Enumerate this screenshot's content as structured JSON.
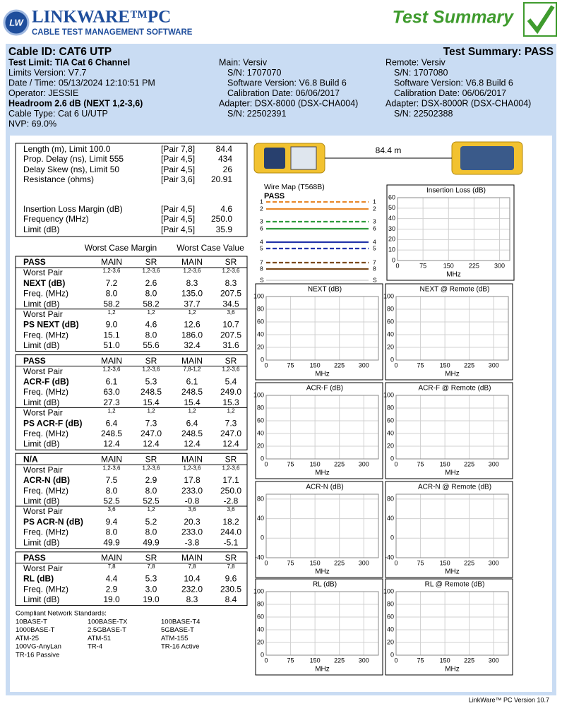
{
  "header": {
    "logo": "LW",
    "brand": "LINKWARE™PC",
    "tagline": "CABLE TEST MANAGEMENT SOFTWARE",
    "title": "Test Summary"
  },
  "info": {
    "cable_id": "Cable ID: CAT6 UTP",
    "summary": "Test Summary: PASS",
    "left": [
      "Test Limit: TIA Cat 6 Channel",
      "Limits Version: V7.7",
      "Date / Time: 05/13/2024  12:10:51 PM",
      "Operator: JESSIE",
      "Headroom 2.6 dB (NEXT 1,2-3,6)",
      "Cable Type: Cat 6 U/UTP",
      "NVP: 69.0%"
    ],
    "main": [
      "Main: Versiv",
      "S/N: 1707070",
      "Software Version: V6.8 Build 6",
      "Calibration Date: 06/06/2017",
      "Adapter: DSX-8000 (DSX-CHA004)",
      "S/N: 22502391"
    ],
    "remote": [
      "Remote: Versiv",
      "S/N: 1707080",
      "Software Version: V6.8 Build 6",
      "Calibration Date: 06/06/2017",
      "Adapter: DSX-8000R (DSX-CHA004)",
      "S/N: 22502388"
    ]
  },
  "measurements": [
    [
      "Length (m), Limit 100.0",
      "[Pair 7,8]",
      "84.4"
    ],
    [
      "Prop. Delay (ns), Limit 555",
      "[Pair 4,5]",
      "434"
    ],
    [
      "Delay Skew (ns), Limit 50",
      "[Pair 4,5]",
      "26"
    ],
    [
      "Resistance (ohms)",
      "[Pair 3,6]",
      "20.91"
    ],
    [
      "Insertion Loss Margin (dB)",
      "[Pair 4,5]",
      "4.6"
    ],
    [
      "Frequency (MHz)",
      "[Pair 4,5]",
      "250.0"
    ],
    [
      "Limit (dB)",
      "[Pair 4,5]",
      "35.9"
    ]
  ],
  "tables": {
    "headers": [
      "Worst Case Margin",
      "Worst Case Value"
    ],
    "row_labels": {
      "worst_pair": "Worst Pair",
      "freq": "Freq. (MHz)",
      "limit": "Limit (dB)"
    },
    "blocks": [
      {
        "status": "PASS",
        "columns": [
          "MAIN",
          "SR",
          "MAIN",
          "SR"
        ],
        "groups": [
          {
            "worst_pair": [
              "1,2-3,6",
              "1,2-3,6",
              "1,2-3,6",
              "1,2-3,6"
            ],
            "name": "NEXT (dB)",
            "values": [
              "7.2",
              "2.6",
              "8.3",
              "8.3"
            ],
            "freq": [
              "8.0",
              "8.0",
              "135.0",
              "207.5"
            ],
            "limit": [
              "58.2",
              "58.2",
              "37.7",
              "34.5"
            ]
          },
          {
            "worst_pair": [
              "1,2",
              "1,2",
              "1,2",
              "3,6"
            ],
            "name": "PS NEXT (dB)",
            "values": [
              "9.0",
              "4.6",
              "12.6",
              "10.7"
            ],
            "freq": [
              "15.1",
              "8.0",
              "186.0",
              "207.5"
            ],
            "limit": [
              "51.0",
              "55.6",
              "32.4",
              "31.6"
            ]
          }
        ]
      },
      {
        "status": "PASS",
        "columns": [
          "MAIN",
          "SR",
          "MAIN",
          "SR"
        ],
        "groups": [
          {
            "worst_pair": [
              "1,2-3,6",
              "1,2-3,6",
              "7,8-1,2",
              "1,2-3,6"
            ],
            "name": "ACR-F (dB)",
            "values": [
              "6.1",
              "5.3",
              "6.1",
              "5.4"
            ],
            "freq": [
              "63.0",
              "248.5",
              "248.5",
              "249.0"
            ],
            "limit": [
              "27.3",
              "15.4",
              "15.4",
              "15.3"
            ]
          },
          {
            "worst_pair": [
              "1,2",
              "1,2",
              "1,2",
              "1,2"
            ],
            "name": "PS ACR-F (dB)",
            "values": [
              "6.4",
              "7.3",
              "6.4",
              "7.3"
            ],
            "freq": [
              "248.5",
              "247.0",
              "248.5",
              "247.0"
            ],
            "limit": [
              "12.4",
              "12.4",
              "12.4",
              "12.4"
            ]
          }
        ]
      },
      {
        "status": "N/A",
        "columns": [
          "MAIN",
          "SR",
          "MAIN",
          "SR"
        ],
        "groups": [
          {
            "worst_pair": [
              "1,2-3,6",
              "1,2-3,6",
              "1,2-3,6",
              "1,2-3,6"
            ],
            "name": "ACR-N (dB)",
            "values": [
              "7.5",
              "2.9",
              "17.8",
              "17.1"
            ],
            "freq": [
              "8.0",
              "8.0",
              "233.0",
              "250.0"
            ],
            "limit": [
              "52.5",
              "52.5",
              "-0.8",
              "-2.8"
            ]
          },
          {
            "worst_pair": [
              "3,6",
              "1,2",
              "3,6",
              "3,6"
            ],
            "name": "PS ACR-N (dB)",
            "values": [
              "9.4",
              "5.2",
              "20.3",
              "18.2"
            ],
            "freq": [
              "8.0",
              "8.0",
              "233.0",
              "244.0"
            ],
            "limit": [
              "49.9",
              "49.9",
              "-3.8",
              "-5.1"
            ]
          }
        ]
      },
      {
        "status": "PASS",
        "columns": [
          "MAIN",
          "SR",
          "MAIN",
          "SR"
        ],
        "groups": [
          {
            "worst_pair": [
              "7,8",
              "7,8",
              "7,8",
              "7,8"
            ],
            "name": "RL (dB)",
            "values": [
              "4.4",
              "5.3",
              "10.4",
              "9.6"
            ],
            "freq": [
              "2.9",
              "3.0",
              "232.0",
              "230.5"
            ],
            "limit": [
              "19.0",
              "19.0",
              "8.3",
              "8.4"
            ]
          }
        ]
      }
    ]
  },
  "standards": {
    "title": "Compliant Network Standards:",
    "items": [
      "10BASE-T",
      "100BASE-TX",
      "100BASE-T4",
      "1000BASE-T",
      "2.5GBASE-T",
      "5GBASE-T",
      "ATM-25",
      "ATM-51",
      "ATM-155",
      "100VG-AnyLan",
      "TR-4",
      "TR-16 Active",
      "TR-16 Passive"
    ]
  },
  "length_graphic": "84.4 m",
  "wiremap": {
    "title": "Wire Map (T568B)",
    "status": "PASS",
    "pins_left": [
      "1",
      "2",
      "3",
      "6",
      "4",
      "5",
      "7",
      "8"
    ],
    "pins_right": [
      "1",
      "2",
      "3",
      "6",
      "4",
      "5",
      "7",
      "8"
    ],
    "shield": [
      "S",
      "S"
    ],
    "colors": [
      "#e8892b",
      "#e8892b",
      "#2e9a3c",
      "#2e9a3c",
      "#2233aa",
      "#2233aa",
      "#7a4a1c",
      "#7a4a1c"
    ]
  },
  "charts": [
    {
      "title": "Insertion Loss (dB)",
      "xlabel": "MHz",
      "xlim": [
        0,
        330
      ],
      "xticks": [
        0,
        75,
        150,
        225,
        300
      ],
      "ylim": [
        0,
        60
      ],
      "yticks": [
        0,
        10,
        20,
        30,
        40,
        50,
        60
      ]
    },
    {
      "title": "NEXT (dB)",
      "xlabel": "MHz",
      "xlim": [
        0,
        345
      ],
      "xticks": [
        0,
        75,
        150,
        225,
        300
      ],
      "ylim": [
        0,
        100
      ],
      "yticks": [
        0,
        20,
        40,
        60,
        80,
        100
      ]
    },
    {
      "title": "NEXT @ Remote (dB)",
      "xlabel": "MHz",
      "xlim": [
        0,
        345
      ],
      "xticks": [
        0,
        75,
        150,
        225,
        300
      ],
      "ylim": [
        0,
        100
      ],
      "yticks": [
        0,
        20,
        40,
        60,
        80,
        100
      ]
    },
    {
      "title": "ACR-F (dB)",
      "xlabel": "MHz",
      "xlim": [
        0,
        345
      ],
      "xticks": [
        0,
        75,
        150,
        225,
        300
      ],
      "ylim": [
        0,
        100
      ],
      "yticks": [
        0,
        20,
        40,
        60,
        80,
        100
      ]
    },
    {
      "title": "ACR-F @ Remote (dB)",
      "xlabel": "MHz",
      "xlim": [
        0,
        345
      ],
      "xticks": [
        0,
        75,
        150,
        225,
        300
      ],
      "ylim": [
        0,
        100
      ],
      "yticks": [
        0,
        20,
        40,
        60,
        80,
        100
      ]
    },
    {
      "title": "ACR-N (dB)",
      "xlabel": "MHz",
      "xlim": [
        0,
        345
      ],
      "xticks": [
        0,
        75,
        150,
        225,
        300
      ],
      "ylim": [
        -40,
        90
      ],
      "yticks": [
        -40,
        0,
        40,
        80
      ]
    },
    {
      "title": "ACR-N @ Remote (dB)",
      "xlabel": "MHz",
      "xlim": [
        0,
        345
      ],
      "xticks": [
        0,
        75,
        150,
        225,
        300
      ],
      "ylim": [
        -40,
        90
      ],
      "yticks": [
        -40,
        0,
        40,
        80
      ]
    },
    {
      "title": "RL (dB)",
      "xlabel": "MHz",
      "xlim": [
        0,
        345
      ],
      "xticks": [
        0,
        75,
        150,
        225,
        300
      ],
      "ylim": [
        0,
        100
      ],
      "yticks": [
        0,
        20,
        40,
        60,
        80,
        100
      ]
    },
    {
      "title": "RL @ Remote (dB)",
      "xlabel": "MHz",
      "xlim": [
        0,
        345
      ],
      "xticks": [
        0,
        75,
        150,
        225,
        300
      ],
      "ylim": [
        0,
        100
      ],
      "yticks": [
        0,
        20,
        40,
        60,
        80,
        100
      ]
    }
  ],
  "footer": "LinkWare™ PC Version 10.7"
}
